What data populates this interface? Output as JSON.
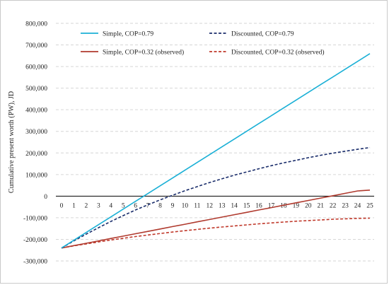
{
  "chart_data": {
    "type": "line",
    "title": "",
    "xlabel": "",
    "ylabel": "Cumulative present worth (PW), JD",
    "x": [
      0,
      1,
      2,
      3,
      4,
      5,
      6,
      7,
      8,
      9,
      10,
      11,
      12,
      13,
      14,
      15,
      16,
      17,
      18,
      19,
      20,
      21,
      22,
      23,
      24,
      25
    ],
    "xlim": [
      0,
      25
    ],
    "ylim": [
      -300000,
      800000
    ],
    "ytick_step": 100000,
    "grid": "horizontal dashed",
    "legend_position": "top, inside plot",
    "series": [
      {
        "name": "Simple, COP=0.79",
        "color": "#1bb0d6",
        "dash": "solid",
        "values": [
          -240000,
          -204000,
          -168000,
          -132000,
          -96000,
          -60000,
          -24000,
          12000,
          48000,
          84000,
          120000,
          156000,
          192000,
          228000,
          264000,
          300000,
          336000,
          372000,
          408000,
          444000,
          480000,
          516000,
          552000,
          588000,
          624000,
          660000
        ]
      },
      {
        "name": "Discounted, COP=0.79",
        "color": "#1a2d6b",
        "dash": "dashed",
        "values": [
          -240000,
          -207000,
          -176000,
          -146000,
          -117000,
          -90000,
          -64000,
          -40000,
          -17000,
          4000,
          25000,
          44000,
          63000,
          80000,
          97000,
          112000,
          127000,
          141000,
          154000,
          166000,
          178000,
          189000,
          199000,
          208000,
          217000,
          225000
        ]
      },
      {
        "name": "Simple, COP=0.32 (observed)",
        "color": "#b03a2e",
        "dash": "solid",
        "values": [
          -240000,
          -229000,
          -218000,
          -207000,
          -196000,
          -185000,
          -174000,
          -163000,
          -152000,
          -141000,
          -130000,
          -119000,
          -108000,
          -97000,
          -86000,
          -75000,
          -64000,
          -53000,
          -42000,
          -31000,
          -20000,
          -9000,
          2000,
          13000,
          24000,
          28000
        ]
      },
      {
        "name": "Discounted, COP=0.32 (observed)",
        "color": "#c0392b",
        "dash": "dashed",
        "values": [
          -240000,
          -230000,
          -221000,
          -212000,
          -203000,
          -195000,
          -187000,
          -180000,
          -173000,
          -166000,
          -160000,
          -154000,
          -148000,
          -143000,
          -138000,
          -133000,
          -128000,
          -124000,
          -120000,
          -116000,
          -113000,
          -110000,
          -107000,
          -105000,
          -103000,
          -102000
        ]
      }
    ]
  },
  "legend": {
    "items": [
      "Simple, COP=0.79",
      "Discounted, COP=0.79",
      "Simple, COP=0.32 (observed)",
      "Discounted, COP=0.32 (observed)"
    ]
  }
}
